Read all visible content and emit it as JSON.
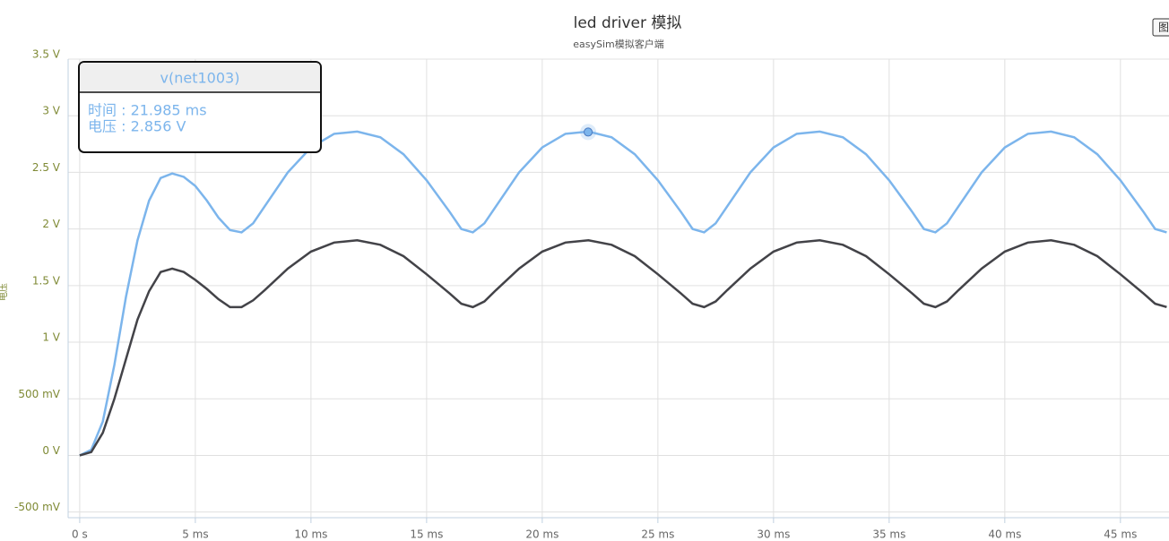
{
  "chart_data": {
    "type": "line",
    "title": "led driver 模拟",
    "subtitle": "easySim模拟客户端",
    "y_label": "电压",
    "button": "图",
    "x": [
      0,
      0.5,
      1,
      1.5,
      2,
      2.5,
      3,
      3.5,
      4,
      4.5,
      5,
      5.5,
      6,
      6.5,
      7,
      7.5,
      8,
      9,
      10,
      11,
      12,
      13,
      14,
      15,
      16,
      16.5,
      17,
      17.5,
      18,
      19,
      20,
      21,
      22,
      23,
      24,
      25,
      26,
      26.5,
      27,
      27.5,
      28,
      29,
      30,
      31,
      32,
      33,
      34,
      35,
      36,
      36.5,
      37,
      37.5,
      38,
      39,
      40,
      41,
      42,
      43,
      44,
      45,
      46,
      46.5,
      47
    ],
    "series": [
      {
        "name": "v(net1003)",
        "color": "#7cb5ec",
        "values": [
          0,
          0.05,
          0.3,
          0.8,
          1.4,
          1.9,
          2.25,
          2.45,
          2.49,
          2.46,
          2.38,
          2.25,
          2.1,
          1.99,
          1.97,
          2.05,
          2.2,
          2.5,
          2.72,
          2.84,
          2.86,
          2.81,
          2.66,
          2.43,
          2.15,
          2.0,
          1.97,
          2.05,
          2.2,
          2.5,
          2.72,
          2.84,
          2.86,
          2.81,
          2.66,
          2.43,
          2.15,
          2.0,
          1.97,
          2.05,
          2.2,
          2.5,
          2.72,
          2.84,
          2.86,
          2.81,
          2.66,
          2.43,
          2.15,
          2.0,
          1.97,
          2.05,
          2.2,
          2.5,
          2.72,
          2.84,
          2.86,
          2.81,
          2.66,
          2.43,
          2.15,
          2.0,
          1.97
        ]
      },
      {
        "color": "#434348",
        "values": [
          0,
          0.03,
          0.2,
          0.5,
          0.85,
          1.2,
          1.45,
          1.62,
          1.65,
          1.62,
          1.55,
          1.47,
          1.38,
          1.31,
          1.31,
          1.37,
          1.46,
          1.65,
          1.8,
          1.88,
          1.9,
          1.86,
          1.76,
          1.6,
          1.43,
          1.34,
          1.31,
          1.36,
          1.46,
          1.65,
          1.8,
          1.88,
          1.9,
          1.86,
          1.76,
          1.6,
          1.43,
          1.34,
          1.31,
          1.36,
          1.46,
          1.65,
          1.8,
          1.88,
          1.9,
          1.86,
          1.76,
          1.6,
          1.43,
          1.34,
          1.31,
          1.36,
          1.46,
          1.65,
          1.8,
          1.88,
          1.9,
          1.86,
          1.76,
          1.6,
          1.43,
          1.34,
          1.31
        ]
      }
    ],
    "xlim": [
      -0.5,
      47.1
    ],
    "ylim": [
      -0.55,
      3.5
    ],
    "xticks": [
      {
        "value": 0,
        "label": "0 s"
      },
      {
        "value": 5,
        "label": "5 ms"
      },
      {
        "value": 10,
        "label": "10 ms"
      },
      {
        "value": 15,
        "label": "15 ms"
      },
      {
        "value": 20,
        "label": "20 ms"
      },
      {
        "value": 25,
        "label": "25 ms"
      },
      {
        "value": 30,
        "label": "30 ms"
      },
      {
        "value": 35,
        "label": "35 ms"
      },
      {
        "value": 40,
        "label": "40 ms"
      },
      {
        "value": 45,
        "label": "45 ms"
      }
    ],
    "yticks": [
      {
        "value": -0.5,
        "label": "-500 mV"
      },
      {
        "value": 0,
        "label": "0 V"
      },
      {
        "value": 0.5,
        "label": "500 mV"
      },
      {
        "value": 1,
        "label": "1 V"
      },
      {
        "value": 1.5,
        "label": "1.5 V"
      },
      {
        "value": 2,
        "label": "2 V"
      },
      {
        "value": 2.5,
        "label": "2.5 V"
      },
      {
        "value": 3,
        "label": "3 V"
      },
      {
        "value": 3.5,
        "label": "3.5 V"
      }
    ],
    "grid": true,
    "tooltip": {
      "title": "v(net1003)",
      "x": 21.985,
      "y": 2.856,
      "x_label": "时间 : 21.985 ms",
      "y_label": "电压 : 2.856 V"
    }
  }
}
